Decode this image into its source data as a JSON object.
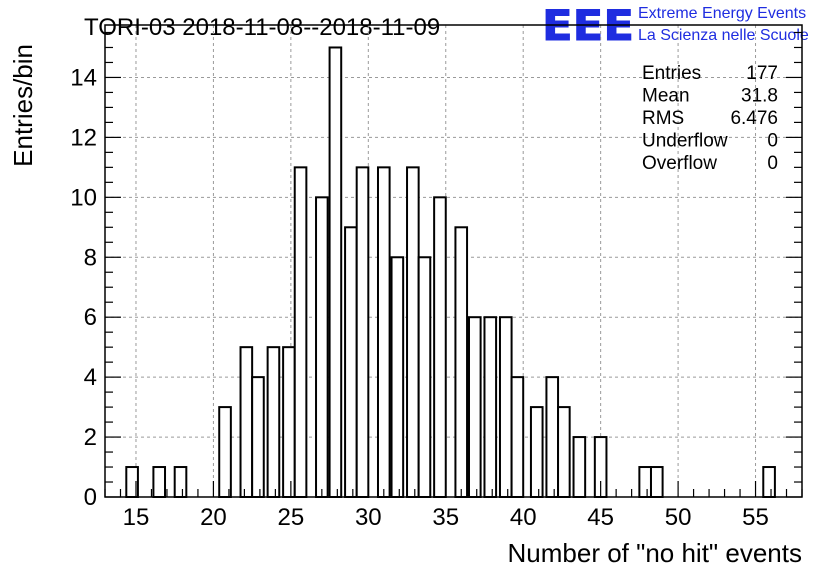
{
  "chart_data": {
    "type": "bar",
    "title": "TORI-03 2018-11-08--2018-11-09",
    "xlabel": "Number of \"no hit\" events",
    "ylabel": "Entries/bin",
    "xlim": [
      13,
      58
    ],
    "ylim": [
      0,
      15.75
    ],
    "bin_width": 0.75,
    "x_ticks": [
      15,
      20,
      25,
      30,
      35,
      40,
      45,
      50,
      55
    ],
    "y_ticks": [
      0,
      2,
      4,
      6,
      8,
      10,
      12,
      14
    ],
    "grid": true,
    "bins": [
      {
        "x": 14.75,
        "value": 1
      },
      {
        "x": 16.5,
        "value": 1
      },
      {
        "x": 17.875,
        "value": 1
      },
      {
        "x": 20.75,
        "value": 3
      },
      {
        "x": 22.125,
        "value": 5
      },
      {
        "x": 22.875,
        "value": 4
      },
      {
        "x": 23.875,
        "value": 5
      },
      {
        "x": 24.875,
        "value": 5
      },
      {
        "x": 25.625,
        "value": 11
      },
      {
        "x": 27.0,
        "value": 10
      },
      {
        "x": 27.875,
        "value": 15
      },
      {
        "x": 28.875,
        "value": 9
      },
      {
        "x": 29.625,
        "value": 11
      },
      {
        "x": 31.0,
        "value": 11
      },
      {
        "x": 31.875,
        "value": 8
      },
      {
        "x": 32.875,
        "value": 11
      },
      {
        "x": 33.625,
        "value": 8
      },
      {
        "x": 34.625,
        "value": 10
      },
      {
        "x": 36.0,
        "value": 9
      },
      {
        "x": 36.875,
        "value": 6
      },
      {
        "x": 37.875,
        "value": 6
      },
      {
        "x": 38.875,
        "value": 6
      },
      {
        "x": 39.625,
        "value": 4
      },
      {
        "x": 40.875,
        "value": 3
      },
      {
        "x": 41.875,
        "value": 4
      },
      {
        "x": 42.625,
        "value": 3
      },
      {
        "x": 43.625,
        "value": 2
      },
      {
        "x": 45.0,
        "value": 2
      },
      {
        "x": 47.875,
        "value": 1
      },
      {
        "x": 48.625,
        "value": 1
      },
      {
        "x": 55.875,
        "value": 1
      }
    ]
  },
  "stats": [
    {
      "label": "Entries",
      "value": "177"
    },
    {
      "label": "Mean",
      "value": "31.8"
    },
    {
      "label": "RMS",
      "value": "6.476"
    },
    {
      "label": "Underflow",
      "value": "0"
    },
    {
      "label": "Overflow",
      "value": "0"
    }
  ],
  "logo": {
    "letters": "EEE",
    "line1": "Extreme Energy Events",
    "line2": "La Scienza nelle Scuole",
    "color": "#1f2de0"
  }
}
